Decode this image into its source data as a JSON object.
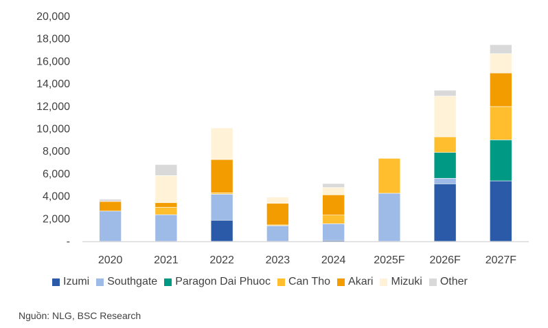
{
  "chart_data": {
    "type": "bar",
    "stacked": true,
    "categories": [
      "2020",
      "2021",
      "2022",
      "2023",
      "2024",
      "2025F",
      "2026F",
      "2027F"
    ],
    "ylim": [
      0,
      20000
    ],
    "yticks": [
      0,
      2000,
      4000,
      6000,
      8000,
      10000,
      12000,
      14000,
      16000,
      18000,
      20000
    ],
    "ytick_labels": [
      "-",
      "2,000",
      "4,000",
      "6,000",
      "8,000",
      "10,000",
      "12,000",
      "14,000",
      "16,000",
      "18,000",
      "20,000"
    ],
    "grid": false,
    "legend": "bottom",
    "series": [
      {
        "name": "Izumi",
        "color": "#2B5BA8",
        "values": [
          0,
          0,
          1880,
          0,
          100,
          0,
          5120,
          5380
        ]
      },
      {
        "name": "Southgate",
        "color": "#9DBBE6",
        "values": [
          2700,
          2370,
          2320,
          1390,
          1470,
          4280,
          490,
          0
        ]
      },
      {
        "name": "Paragon Dai Phuoc",
        "color": "#009A84",
        "values": [
          0,
          0,
          0,
          0,
          0,
          0,
          2300,
          3650
        ]
      },
      {
        "name": "Can Tho",
        "color": "#FFBE2E",
        "values": [
          0,
          670,
          120,
          80,
          770,
          3100,
          1390,
          2960
        ]
      },
      {
        "name": "Akari",
        "color": "#F39C00",
        "values": [
          850,
          400,
          2960,
          1910,
          1800,
          0,
          0,
          2990
        ]
      },
      {
        "name": "Mizuki",
        "color": "#FFF2D6",
        "values": [
          0,
          2410,
          2810,
          550,
          650,
          0,
          3620,
          1720
        ]
      },
      {
        "name": "Other",
        "color": "#D9D9D9",
        "values": [
          200,
          980,
          0,
          0,
          350,
          0,
          520,
          790
        ]
      }
    ]
  },
  "source": "Nguồn: NLG, BSC Research"
}
